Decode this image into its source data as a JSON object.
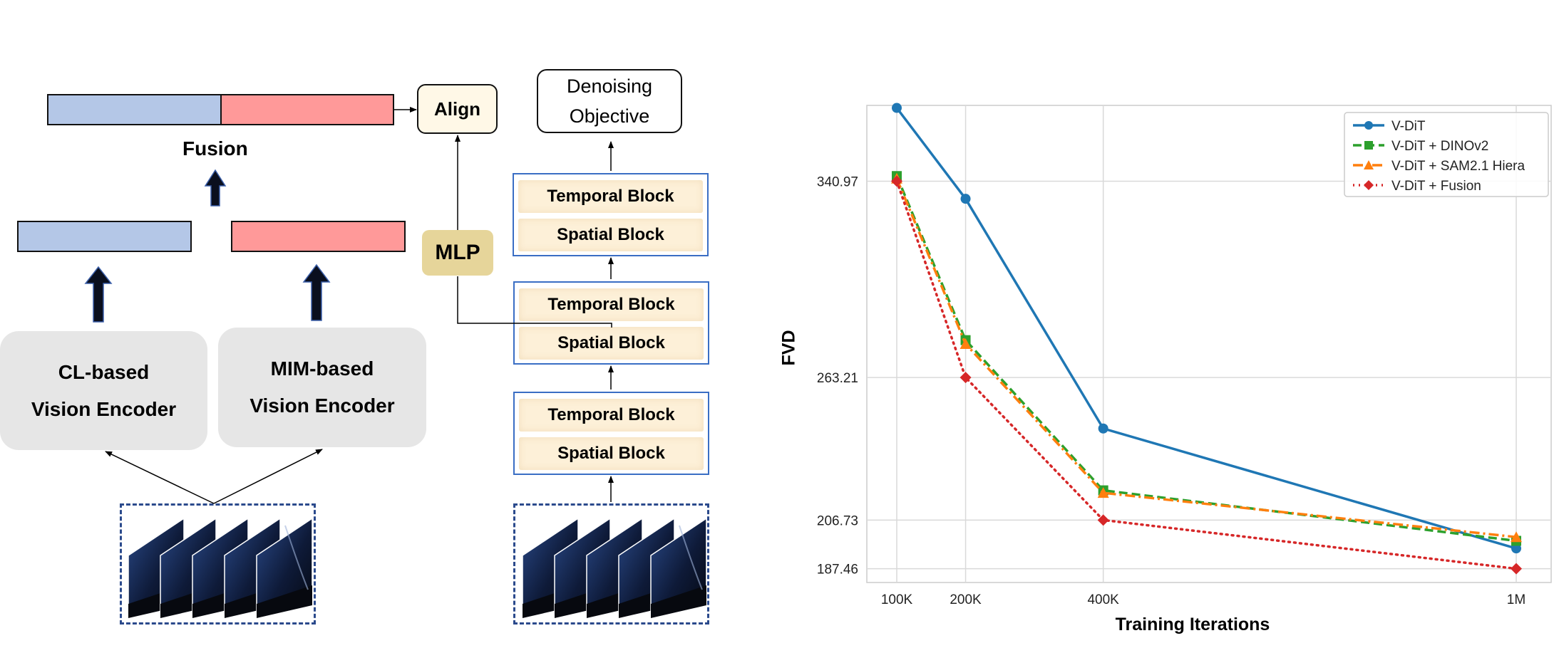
{
  "diagram": {
    "fusion_label": "Fusion",
    "align_label": "Align",
    "mlp_label": "MLP",
    "objective_line1": "Denoising",
    "objective_line2": "Objective",
    "cl_encoder_line1": "CL-based",
    "cl_encoder_line2": "Vision Encoder",
    "mim_encoder_line1": "MIM-based",
    "mim_encoder_line2": "Vision Encoder",
    "temporal_block": "Temporal Block",
    "spatial_block": "Spatial Block",
    "colors": {
      "cl_feature": "#b4c7e7",
      "mim_feature": "#ff9999",
      "block_fill": "#fdf0d8",
      "mlp_fill": "#e6d59a"
    }
  },
  "chart_data": {
    "type": "line",
    "xlabel": "Training Iterations",
    "ylabel": "FVD",
    "x": [
      "100K",
      "200K",
      "400K",
      "1M"
    ],
    "yticks": [
      187.46,
      206.73,
      263.21,
      340.97
    ],
    "ylim": [
      182,
      371
    ],
    "grid": true,
    "legend_position": "top-right",
    "series": [
      {
        "name": "V-DiT",
        "values": [
          370.0,
          334.0,
          243.0,
          195.5
        ],
        "color": "#1f77b4",
        "marker": "circle",
        "dash": "solid"
      },
      {
        "name": "V-DiT + DINOv2",
        "values": [
          343.0,
          278.0,
          218.5,
          198.5
        ],
        "color": "#2ca02c",
        "marker": "square",
        "dash": "dashed"
      },
      {
        "name": "V-DiT + SAM2.1 Hiera",
        "values": [
          342.0,
          276.5,
          217.5,
          200.0
        ],
        "color": "#ff7f0e",
        "marker": "triangle",
        "dash": "dashdot"
      },
      {
        "name": "V-DiT + Fusion",
        "values": [
          341.0,
          263.21,
          206.73,
          187.46
        ],
        "color": "#d62728",
        "marker": "diamond",
        "dash": "dotted"
      }
    ]
  }
}
